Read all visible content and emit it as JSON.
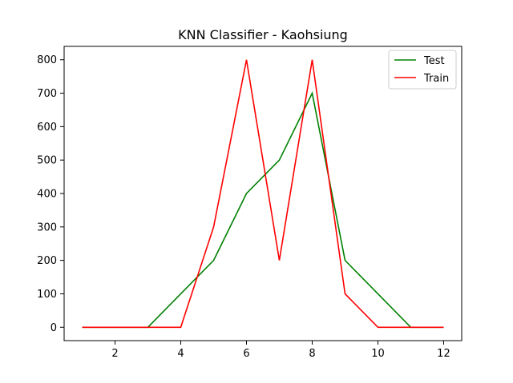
{
  "chart_data": {
    "type": "line",
    "title": "KNN Classifier - Kaohsiung",
    "xlabel": "",
    "ylabel": "",
    "x": [
      1,
      2,
      3,
      4,
      5,
      6,
      7,
      8,
      9,
      10,
      11,
      12
    ],
    "series": [
      {
        "name": "Test",
        "color": "#008000",
        "values": [
          0,
          0,
          0,
          100,
          200,
          400,
          500,
          700,
          200,
          100,
          0,
          0
        ]
      },
      {
        "name": "Train",
        "color": "#ff0000",
        "values": [
          0,
          0,
          0,
          0,
          300,
          800,
          200,
          800,
          100,
          0,
          0,
          0
        ]
      }
    ],
    "xlim": [
      0.45,
      12.55
    ],
    "ylim": [
      -40,
      840
    ],
    "xticks": [
      2,
      4,
      6,
      8,
      10,
      12
    ],
    "yticks": [
      0,
      100,
      200,
      300,
      400,
      500,
      600,
      700,
      800
    ],
    "grid": false,
    "legend_position": "top-right"
  }
}
